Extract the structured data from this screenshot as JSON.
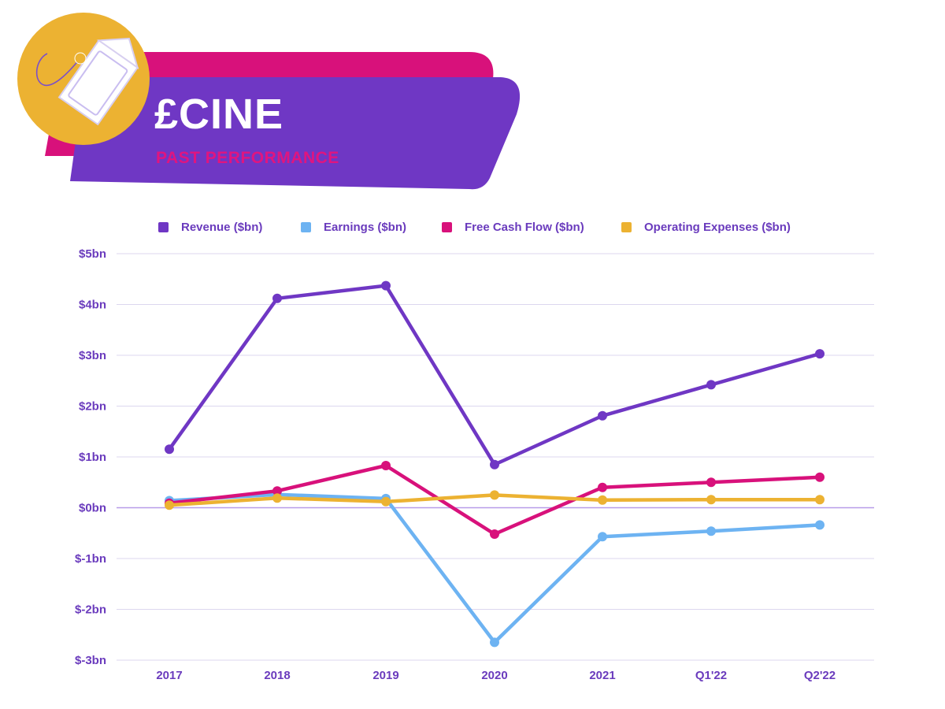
{
  "header": {
    "title": "£CINE",
    "subtitle": "PAST PERFORMANCE",
    "icon": "price-tag-icon",
    "colors": {
      "banner_purple": "#6f37c4",
      "banner_pink": "#d8117b",
      "badge_gold": "#ecb232"
    }
  },
  "chart_data": {
    "type": "line",
    "title": "",
    "xlabel": "",
    "ylabel": "",
    "categories": [
      "2017",
      "2018",
      "2019",
      "2020",
      "2021",
      "Q1'22",
      "Q2'22"
    ],
    "y_ticks": [
      "$5bn",
      "$4bn",
      "$3bn",
      "$2bn",
      "$1bn",
      "$0bn",
      "$-1bn",
      "$-2bn",
      "$-3bn"
    ],
    "ylim": [
      -3,
      5
    ],
    "grid": true,
    "legend_position": "top",
    "series": [
      {
        "name": "Revenue ($bn)",
        "color": "#6f37c4",
        "values": [
          1.15,
          4.12,
          4.37,
          0.85,
          1.81,
          2.42,
          3.03
        ]
      },
      {
        "name": "Earnings ($bn)",
        "color": "#6db3f2",
        "values": [
          0.14,
          0.26,
          0.18,
          -2.65,
          -0.57,
          -0.46,
          -0.34
        ]
      },
      {
        "name": "Free Cash Flow ($bn)",
        "color": "#d8117b",
        "values": [
          0.09,
          0.33,
          0.83,
          -0.52,
          0.4,
          0.5,
          0.6
        ]
      },
      {
        "name": "Operating Expenses ($bn)",
        "color": "#ecb232",
        "values": [
          0.05,
          0.19,
          0.12,
          0.25,
          0.15,
          0.16,
          0.16
        ]
      }
    ]
  }
}
